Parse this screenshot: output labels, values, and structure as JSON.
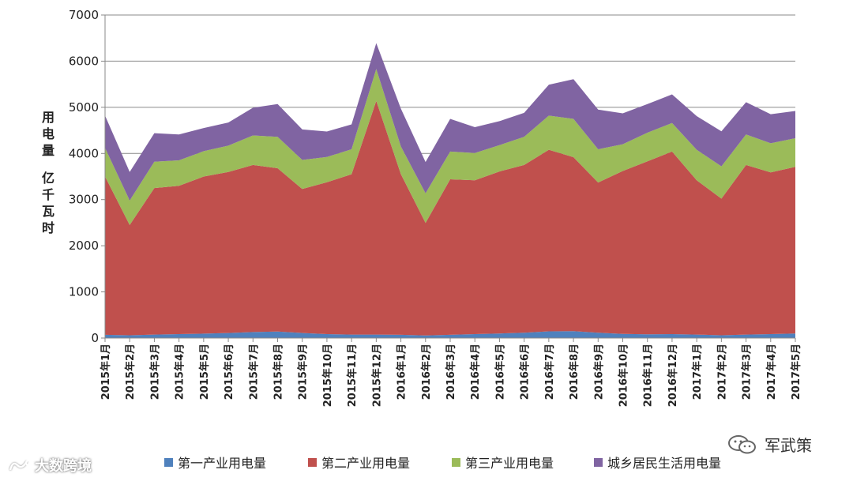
{
  "chart_data": {
    "type": "area",
    "stacked": true,
    "title": "",
    "ylabel_line1": [
      "用",
      "电",
      "量"
    ],
    "ylabel_line2": [
      "亿",
      "千",
      "瓦",
      "时"
    ],
    "ylim": [
      0,
      7000
    ],
    "yticks": [
      "0",
      "1000",
      "2000",
      "3000",
      "4000",
      "5000",
      "6000",
      "7000"
    ],
    "grid": true,
    "categories": [
      "2015年1月",
      "2015年2月",
      "2015年3月",
      "2015年4月",
      "2015年5月",
      "2015年6月",
      "2015年7月",
      "2015年8月",
      "2015年9月",
      "2015年10月",
      "2015年11月",
      "2015年12月",
      "2016年1月",
      "2016年2月",
      "2016年3月",
      "2016年4月",
      "2016年5月",
      "2016年6月",
      "2016年7月",
      "2016年8月",
      "2016年9月",
      "2016年10月",
      "2016年11月",
      "2016年12月",
      "2017年1月",
      "2017年2月",
      "2017年3月",
      "2017年4月",
      "2017年5月"
    ],
    "series": [
      {
        "name": "第一产业用电量",
        "color": "#4f81bd",
        "values": [
          70,
          60,
          75,
          85,
          95,
          110,
          130,
          140,
          110,
          85,
          75,
          75,
          70,
          55,
          70,
          85,
          100,
          115,
          145,
          150,
          115,
          90,
          80,
          85,
          75,
          60,
          75,
          85,
          100
        ]
      },
      {
        "name": "第二产业用电量",
        "color": "#c0504d",
        "values": [
          3430,
          2390,
          3175,
          3215,
          3405,
          3490,
          3620,
          3540,
          3120,
          3290,
          3475,
          5065,
          3480,
          2440,
          3370,
          3335,
          3510,
          3635,
          3935,
          3770,
          3255,
          3530,
          3750,
          3955,
          3345,
          2960,
          3675,
          3505,
          3610
        ]
      },
      {
        "name": "第三产业用电量",
        "color": "#9bbb59",
        "values": [
          620,
          530,
          570,
          550,
          550,
          570,
          640,
          680,
          630,
          550,
          540,
          690,
          600,
          640,
          600,
          590,
          570,
          610,
          740,
          830,
          720,
          580,
          620,
          620,
          660,
          700,
          660,
          630,
          620
        ]
      },
      {
        "name": "城乡居民生活用电量",
        "color": "#8064a2",
        "values": [
          700,
          620,
          620,
          560,
          500,
          500,
          600,
          710,
          660,
          550,
          540,
          560,
          820,
          680,
          710,
          560,
          520,
          520,
          670,
          860,
          860,
          670,
          620,
          620,
          730,
          760,
          700,
          630,
          590
        ]
      }
    ],
    "legend_position": "bottom"
  },
  "watermarks": {
    "left": "大数跨境",
    "right": "军武策"
  }
}
